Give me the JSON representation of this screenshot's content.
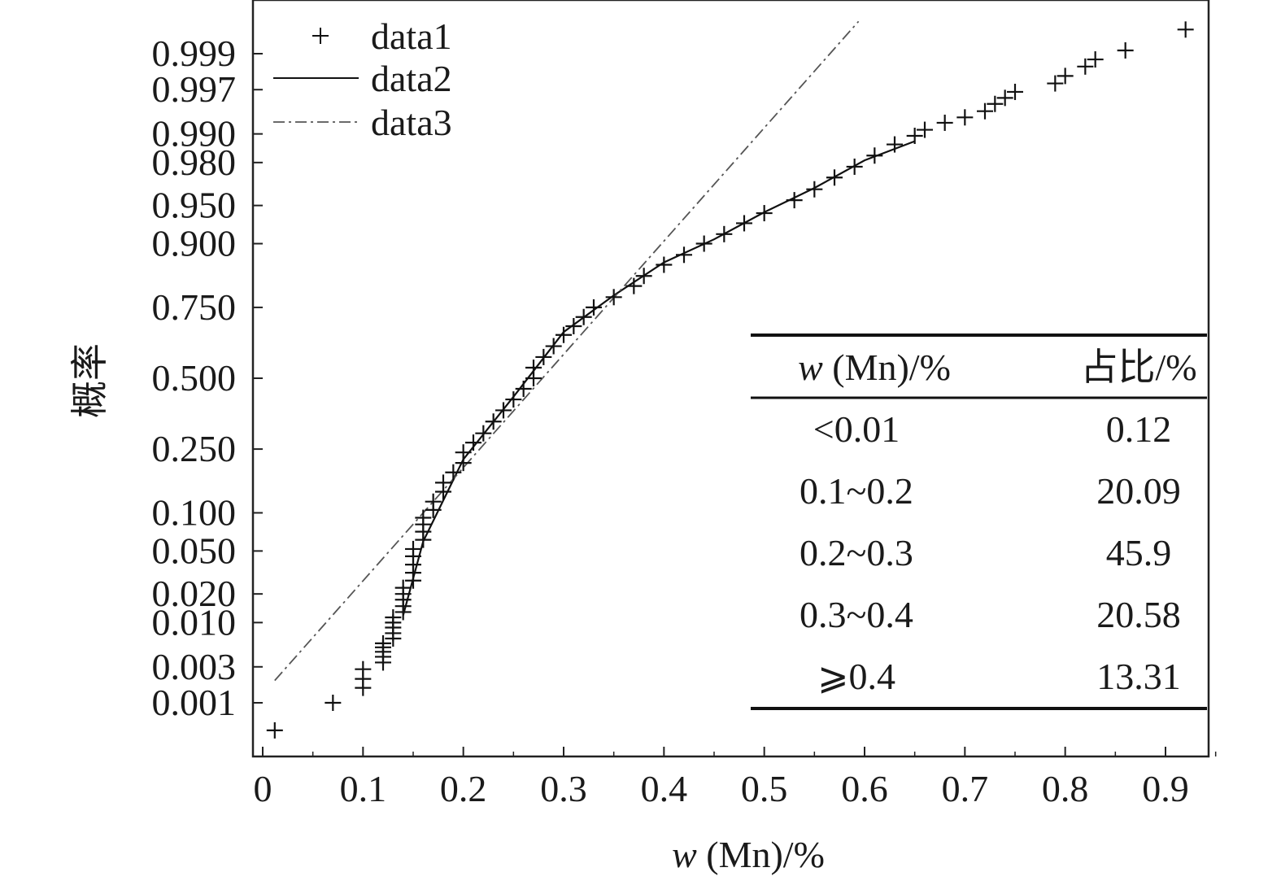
{
  "chart_data": {
    "type": "scatter",
    "title": "",
    "xlabel_var": "w",
    "xlabel_rest": " (Mn)/%",
    "ylabel": "概率",
    "xlim": [
      -0.01,
      0.945
    ],
    "x_ticks": [
      "0",
      "0.1",
      "0.2",
      "0.3",
      "0.4",
      "0.5",
      "0.6",
      "0.7",
      "0.8",
      "0.9"
    ],
    "y_scale": "normal-probability",
    "y_ticks": [
      "0.999",
      "0.997",
      "0.990",
      "0.980",
      "0.950",
      "0.900",
      "0.750",
      "0.500",
      "0.250",
      "0.100",
      "0.050",
      "0.020",
      "0.010",
      "0.003",
      "0.001"
    ],
    "legend_position": "top-left",
    "legend": [
      "data1",
      "data2",
      "data3"
    ],
    "series": [
      {
        "name": "data1",
        "marker": "+",
        "points": [
          [
            0.012,
            0.0004
          ],
          [
            0.07,
            0.001
          ],
          [
            0.1,
            0.0016
          ],
          [
            0.1,
            0.0021
          ],
          [
            0.1,
            0.0028
          ],
          [
            0.12,
            0.0034
          ],
          [
            0.12,
            0.004
          ],
          [
            0.12,
            0.0046
          ],
          [
            0.12,
            0.0052
          ],
          [
            0.12,
            0.0058
          ],
          [
            0.13,
            0.0066
          ],
          [
            0.13,
            0.0076
          ],
          [
            0.13,
            0.0088
          ],
          [
            0.13,
            0.01
          ],
          [
            0.13,
            0.0114
          ],
          [
            0.14,
            0.013
          ],
          [
            0.14,
            0.015
          ],
          [
            0.14,
            0.0175
          ],
          [
            0.14,
            0.02
          ],
          [
            0.14,
            0.023
          ],
          [
            0.15,
            0.027
          ],
          [
            0.15,
            0.032
          ],
          [
            0.15,
            0.038
          ],
          [
            0.15,
            0.045
          ],
          [
            0.15,
            0.052
          ],
          [
            0.16,
            0.062
          ],
          [
            0.16,
            0.072
          ],
          [
            0.16,
            0.082
          ],
          [
            0.16,
            0.092
          ],
          [
            0.17,
            0.105
          ],
          [
            0.17,
            0.12
          ],
          [
            0.18,
            0.14
          ],
          [
            0.18,
            0.16
          ],
          [
            0.19,
            0.185
          ],
          [
            0.2,
            0.21
          ],
          [
            0.2,
            0.24
          ],
          [
            0.21,
            0.27
          ],
          [
            0.22,
            0.3
          ],
          [
            0.23,
            0.34
          ],
          [
            0.24,
            0.38
          ],
          [
            0.25,
            0.42
          ],
          [
            0.26,
            0.46
          ],
          [
            0.27,
            0.5
          ],
          [
            0.27,
            0.54
          ],
          [
            0.28,
            0.58
          ],
          [
            0.29,
            0.62
          ],
          [
            0.3,
            0.66
          ],
          [
            0.31,
            0.69
          ],
          [
            0.32,
            0.72
          ],
          [
            0.33,
            0.75
          ],
          [
            0.35,
            0.78
          ],
          [
            0.37,
            0.81
          ],
          [
            0.38,
            0.835
          ],
          [
            0.4,
            0.86
          ],
          [
            0.42,
            0.88
          ],
          [
            0.44,
            0.9
          ],
          [
            0.46,
            0.915
          ],
          [
            0.48,
            0.93
          ],
          [
            0.5,
            0.942
          ],
          [
            0.53,
            0.955
          ],
          [
            0.55,
            0.964
          ],
          [
            0.57,
            0.972
          ],
          [
            0.59,
            0.978
          ],
          [
            0.61,
            0.983
          ],
          [
            0.63,
            0.987
          ],
          [
            0.65,
            0.9895
          ],
          [
            0.66,
            0.991
          ],
          [
            0.68,
            0.9925
          ],
          [
            0.7,
            0.9935
          ],
          [
            0.72,
            0.9945
          ],
          [
            0.73,
            0.9955
          ],
          [
            0.74,
            0.9962
          ],
          [
            0.75,
            0.9968
          ],
          [
            0.79,
            0.9975
          ],
          [
            0.8,
            0.998
          ],
          [
            0.82,
            0.9985
          ],
          [
            0.83,
            0.9988
          ],
          [
            0.86,
            0.9991
          ],
          [
            0.92,
            0.99955
          ]
        ]
      },
      {
        "name": "data2",
        "style": "solid",
        "points": [
          [
            0.14,
            0.012
          ],
          [
            0.16,
            0.06
          ],
          [
            0.2,
            0.22
          ],
          [
            0.25,
            0.43
          ],
          [
            0.3,
            0.67
          ],
          [
            0.35,
            0.785
          ],
          [
            0.4,
            0.865
          ],
          [
            0.45,
            0.907
          ],
          [
            0.5,
            0.943
          ],
          [
            0.55,
            0.965
          ],
          [
            0.6,
            0.981
          ],
          [
            0.65,
            0.988
          ]
        ]
      },
      {
        "name": "data3",
        "style": "dashdot",
        "points": [
          [
            0.012,
            0.002
          ],
          [
            0.594,
            0.99966
          ]
        ]
      }
    ],
    "table": {
      "header": [
        {
          "var": "w",
          "rest": " (Mn)/%"
        },
        {
          "var": "",
          "rest": "占比/%"
        }
      ],
      "rows": [
        [
          "<0.01",
          "0.12"
        ],
        [
          "0.1~0.2",
          "20.09"
        ],
        [
          "0.2~0.3",
          "45.9"
        ],
        [
          "0.3~0.4",
          "20.58"
        ],
        [
          "⩾0.4",
          "13.31"
        ]
      ]
    }
  }
}
